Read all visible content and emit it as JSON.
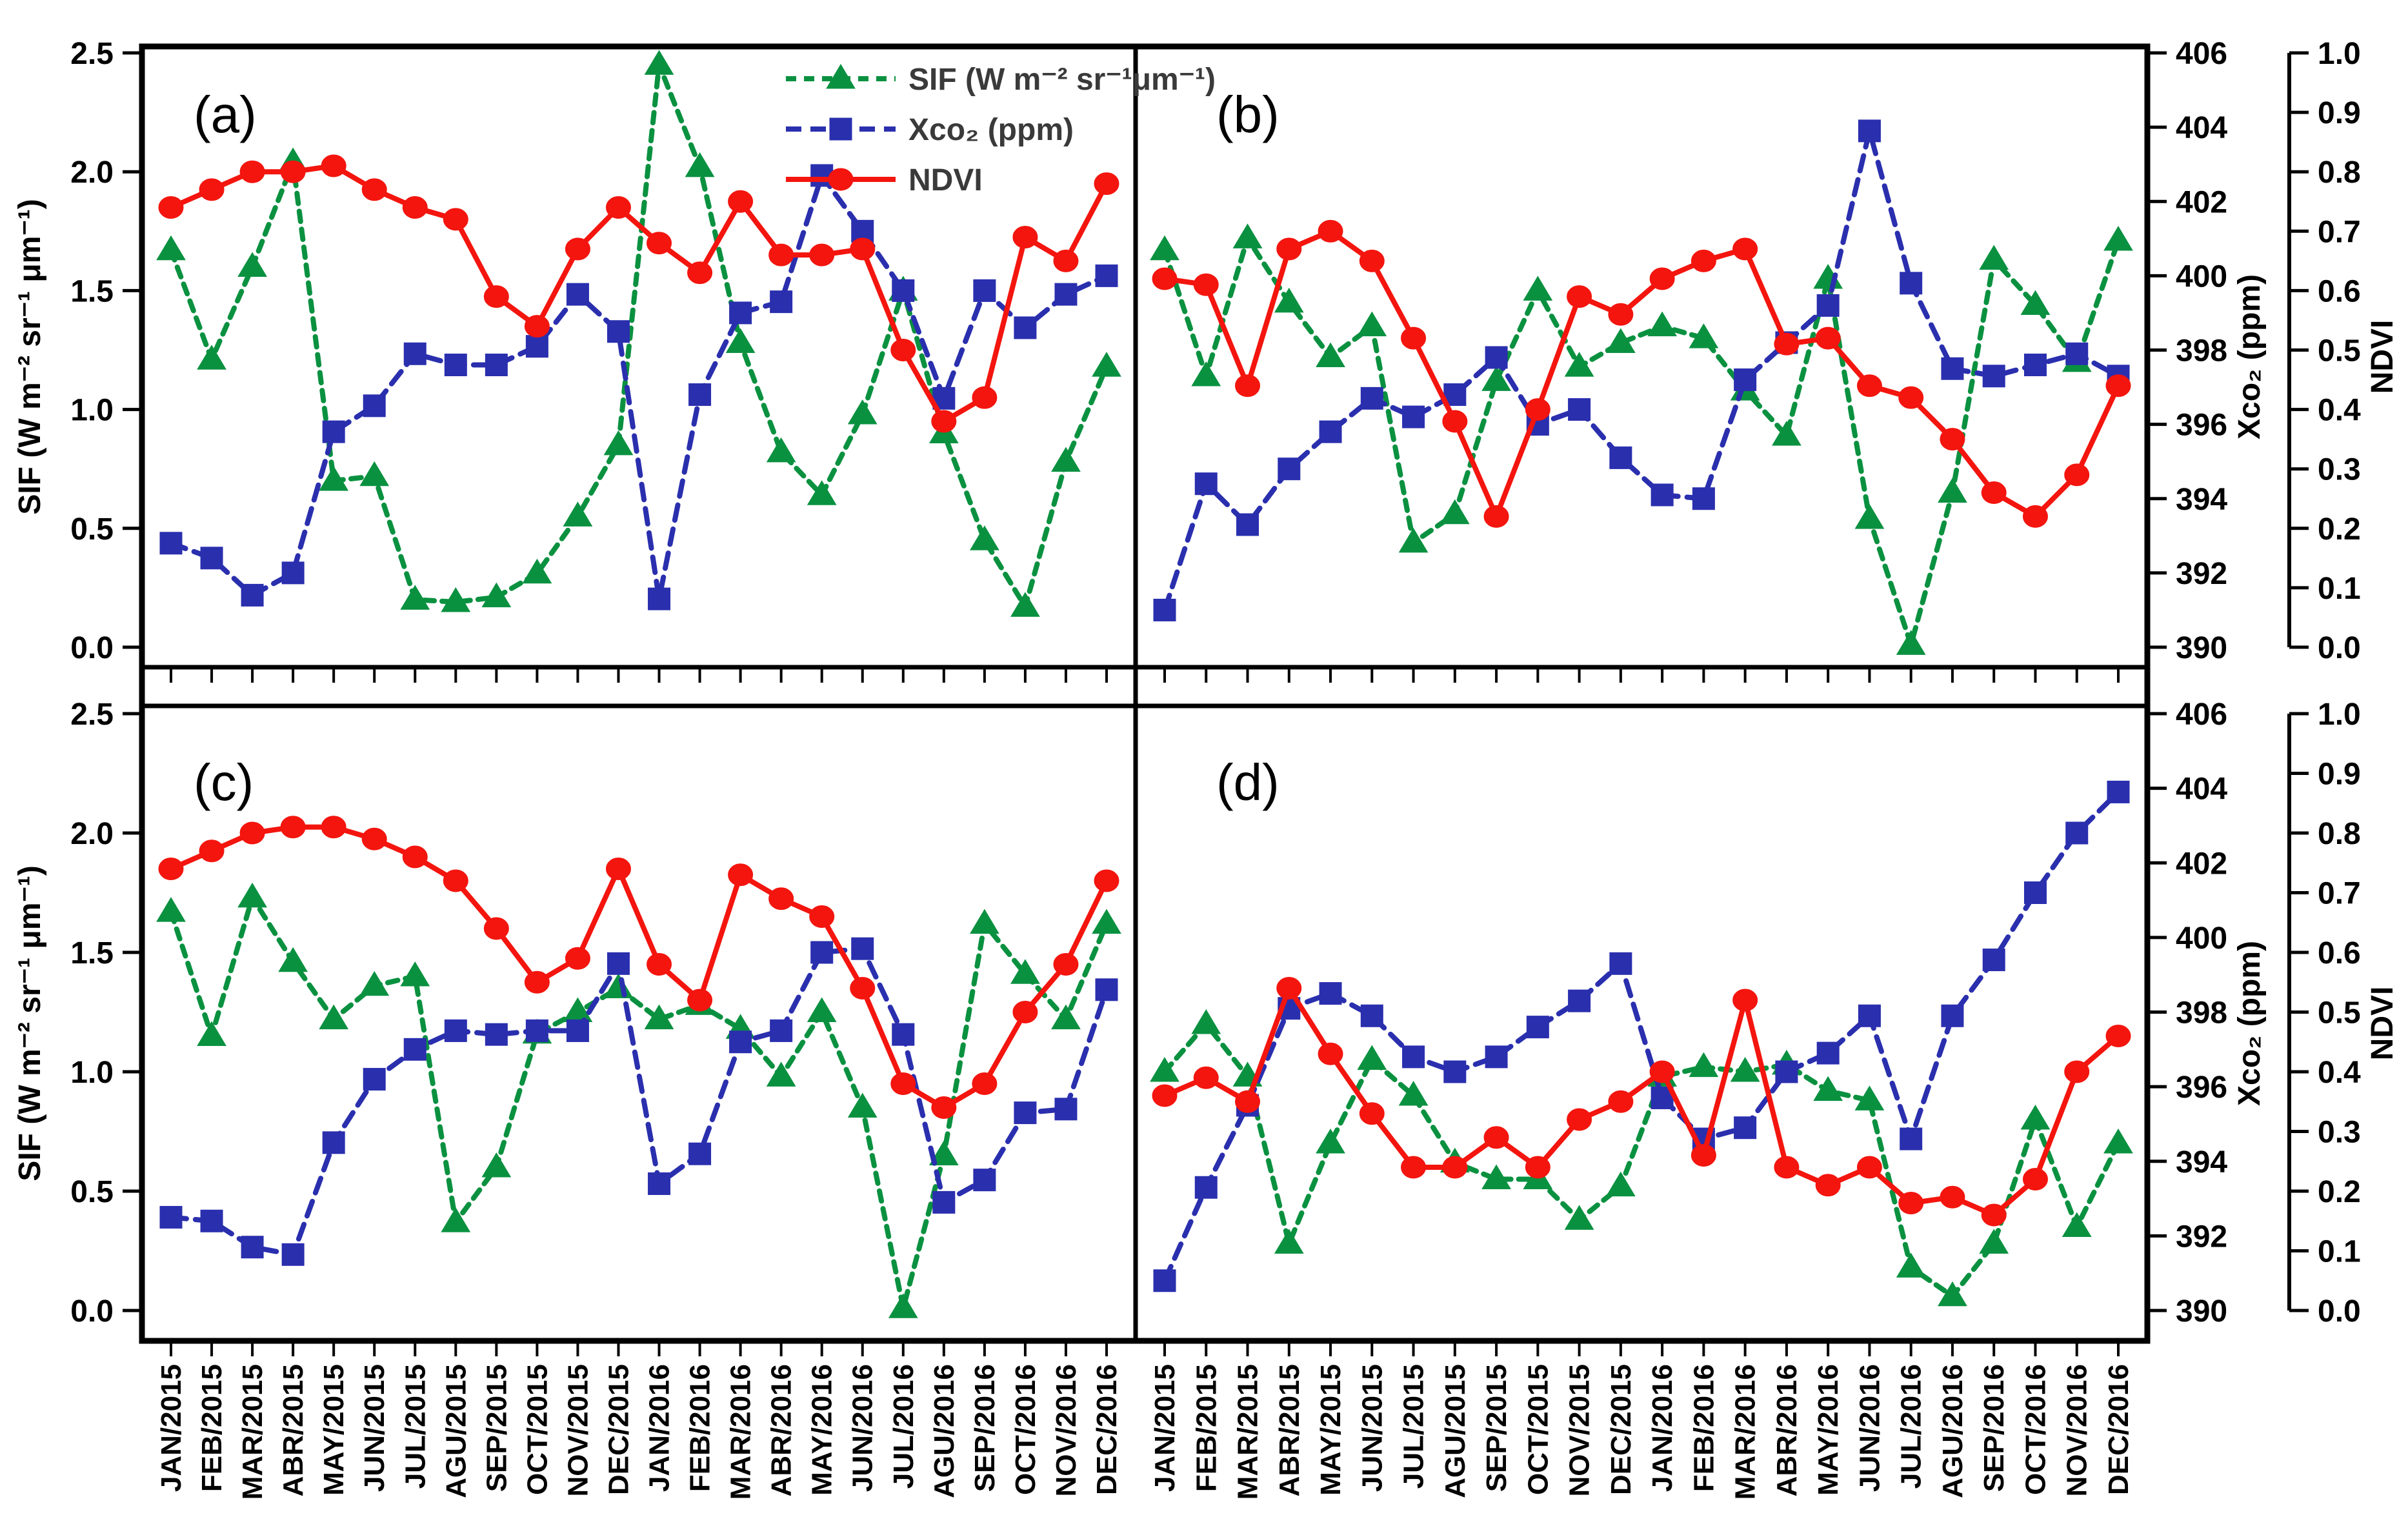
{
  "figure": {
    "background": "#ffffff",
    "panel_letters": [
      "(a)",
      "(b)",
      "(c)",
      "(d)"
    ]
  },
  "legend": {
    "items": [
      {
        "key": "sif",
        "label": "SIF (W m⁻² sr⁻¹μm⁻¹)",
        "marker": "triangle",
        "color": "#0a9140"
      },
      {
        "key": "xco2",
        "label": "Xco₂ (ppm)",
        "marker": "square",
        "color": "#2a2fae"
      },
      {
        "key": "ndvi",
        "label": "NDVI",
        "marker": "circle",
        "color": "#f3150e"
      }
    ]
  },
  "chart_data": {
    "type": "line",
    "title": "",
    "x_categories": [
      "JAN/2015",
      "FEB/2015",
      "MAR/2015",
      "ABR/2015",
      "MAY/2015",
      "JUN/2015",
      "JUL/2015",
      "AGU/2015",
      "SEP/2015",
      "OCT/2015",
      "NOV/2015",
      "DEC/2015",
      "JAN/2016",
      "FEB/2016",
      "MAR/2016",
      "ABR/2016",
      "MAY/2016",
      "JUN/2016",
      "JUL/2016",
      "AGU/2016",
      "SEP/2016",
      "OCT/2016",
      "NOV/2016",
      "DEC/2016"
    ],
    "axes": {
      "sif": {
        "label": "SIF (W m⁻² sr⁻¹ μm⁻¹)",
        "min": 0.0,
        "max": 2.5,
        "ticks": [
          0.0,
          0.5,
          1.0,
          1.5,
          2.0,
          2.5
        ],
        "tick_labels": [
          "0.0",
          "0.5",
          "1.0",
          "1.5",
          "2.0",
          "2.5"
        ],
        "side": "left"
      },
      "xco2": {
        "label": "Xco₂ (ppm)",
        "min": 390,
        "max": 406,
        "ticks": [
          390,
          392,
          394,
          396,
          398,
          400,
          402,
          404,
          406
        ],
        "tick_labels": [
          "390",
          "392",
          "394",
          "396",
          "398",
          "400",
          "402",
          "404",
          "406"
        ],
        "side": "right"
      },
      "ndvi": {
        "label": "NDVI",
        "min": 0.0,
        "max": 1.0,
        "ticks": [
          0.0,
          0.1,
          0.2,
          0.3,
          0.4,
          0.5,
          0.6,
          0.7,
          0.8,
          0.9,
          1.0
        ],
        "tick_labels": [
          "0.0",
          "0.1",
          "0.2",
          "0.3",
          "0.4",
          "0.5",
          "0.6",
          "0.7",
          "0.8",
          "0.9",
          "1.0"
        ],
        "side": "far-right"
      },
      "grid": false,
      "legend_position": "top-center-of-panel-a"
    },
    "series_meta": [
      {
        "key": "sif",
        "name": "SIF",
        "axis": "sif",
        "color": "#0a9140",
        "marker": "triangle",
        "dash": "16 12"
      },
      {
        "key": "xco2",
        "name": "Xco₂",
        "axis": "xco2",
        "color": "#2a2fae",
        "marker": "square",
        "dash": "24 14"
      },
      {
        "key": "ndvi",
        "name": "NDVI",
        "axis": "ndvi",
        "color": "#f3150e",
        "marker": "circle",
        "dash": ""
      }
    ],
    "panels": [
      {
        "id": "a",
        "letter": "(a)",
        "series": {
          "sif": [
            1.67,
            1.21,
            1.6,
            2.04,
            0.7,
            0.72,
            0.2,
            0.19,
            0.21,
            0.31,
            0.55,
            0.85,
            2.45,
            2.02,
            1.28,
            0.82,
            0.64,
            0.98,
            1.5,
            0.9,
            0.45,
            0.17,
            0.78,
            1.18
          ],
          "xco2": [
            392.8,
            392.4,
            391.4,
            392.0,
            395.8,
            396.5,
            397.9,
            397.6,
            397.6,
            398.1,
            399.5,
            398.5,
            391.3,
            396.8,
            399.0,
            399.3,
            402.7,
            401.2,
            399.6,
            396.7,
            399.6,
            398.6,
            399.5,
            400.0
          ],
          "ndvi": [
            0.74,
            0.77,
            0.8,
            0.8,
            0.81,
            0.77,
            0.74,
            0.72,
            0.59,
            0.54,
            0.67,
            0.74,
            0.68,
            0.63,
            0.75,
            0.66,
            0.66,
            0.67,
            0.5,
            0.38,
            0.42,
            0.69,
            0.65,
            0.78
          ]
        }
      },
      {
        "id": "b",
        "letter": "(b)",
        "series": {
          "sif": [
            1.67,
            1.14,
            1.72,
            1.45,
            1.22,
            1.35,
            0.44,
            0.56,
            1.12,
            1.5,
            1.18,
            1.28,
            1.35,
            1.3,
            1.08,
            0.89,
            1.55,
            0.54,
            0.01,
            0.65,
            1.63,
            1.44,
            1.2,
            1.71
          ],
          "xco2": [
            391.0,
            394.4,
            393.3,
            394.8,
            395.8,
            396.7,
            396.2,
            396.8,
            397.8,
            396.0,
            396.4,
            395.1,
            394.1,
            394.0,
            397.2,
            398.2,
            399.2,
            403.9,
            399.8,
            397.5,
            397.3,
            397.6,
            397.9,
            397.3
          ],
          "ndvi": [
            0.62,
            0.61,
            0.44,
            0.67,
            0.7,
            0.65,
            0.52,
            0.38,
            0.22,
            0.4,
            0.59,
            0.56,
            0.62,
            0.65,
            0.67,
            0.51,
            0.52,
            0.44,
            0.42,
            0.35,
            0.26,
            0.22,
            0.29,
            0.44
          ]
        }
      },
      {
        "id": "c",
        "letter": "(c)",
        "series": {
          "sif": [
            1.67,
            1.15,
            1.73,
            1.46,
            1.22,
            1.36,
            1.4,
            0.37,
            0.6,
            1.16,
            1.25,
            1.35,
            1.22,
            1.28,
            1.18,
            0.98,
            1.25,
            0.85,
            0.01,
            0.65,
            1.62,
            1.41,
            1.22,
            1.62
          ],
          "xco2": [
            392.5,
            392.4,
            391.7,
            391.5,
            394.5,
            396.2,
            397.0,
            397.5,
            397.4,
            397.5,
            397.5,
            399.3,
            393.4,
            394.2,
            397.2,
            397.5,
            399.6,
            399.7,
            397.4,
            392.9,
            393.5,
            395.3,
            395.4,
            398.6
          ],
          "ndvi": [
            0.74,
            0.77,
            0.8,
            0.81,
            0.81,
            0.79,
            0.76,
            0.72,
            0.64,
            0.55,
            0.59,
            0.74,
            0.58,
            0.52,
            0.73,
            0.69,
            0.66,
            0.54,
            0.38,
            0.34,
            0.38,
            0.5,
            0.58,
            0.72
          ]
        }
      },
      {
        "id": "d",
        "letter": "(d)",
        "series": {
          "sif": [
            1.0,
            1.2,
            0.98,
            0.28,
            0.7,
            1.05,
            0.9,
            0.62,
            0.55,
            0.55,
            0.38,
            0.52,
            0.98,
            1.02,
            1.0,
            1.03,
            0.92,
            0.88,
            0.18,
            0.06,
            0.28,
            0.8,
            0.35,
            0.7
          ],
          "xco2": [
            390.8,
            393.3,
            395.5,
            398.1,
            398.5,
            397.9,
            396.8,
            396.4,
            396.8,
            397.6,
            398.3,
            399.3,
            395.7,
            394.6,
            394.9,
            396.4,
            396.9,
            397.9,
            394.6,
            397.9,
            399.4,
            401.2,
            402.8,
            403.9
          ],
          "ndvi": [
            0.36,
            0.39,
            0.35,
            0.54,
            0.43,
            0.33,
            0.24,
            0.24,
            0.29,
            0.24,
            0.32,
            0.35,
            0.4,
            0.26,
            0.52,
            0.24,
            0.21,
            0.24,
            0.18,
            0.19,
            0.16,
            0.22,
            0.4,
            0.46
          ]
        }
      }
    ]
  }
}
